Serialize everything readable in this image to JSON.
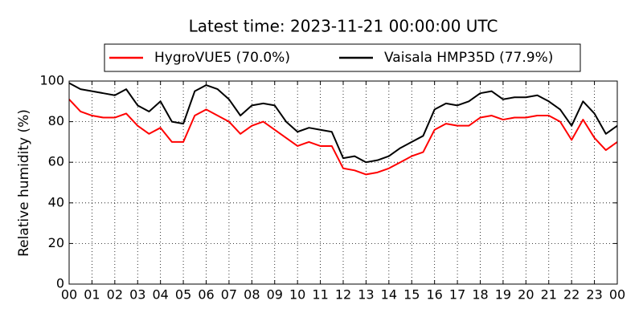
{
  "chart_data": {
    "type": "line",
    "title": "Latest time: 2023-11-21 00:00:00 UTC",
    "y_label": "Relative humidity (%)",
    "x": [
      0,
      0.5,
      1,
      1.5,
      2,
      2.5,
      3,
      3.5,
      4,
      4.5,
      5,
      5.5,
      6,
      6.5,
      7,
      7.5,
      8,
      8.5,
      9,
      9.5,
      10,
      10.5,
      11,
      11.5,
      12,
      12.5,
      13,
      13.5,
      14,
      14.5,
      15,
      15.5,
      16,
      16.5,
      17,
      17.5,
      18,
      18.5,
      19,
      19.5,
      20,
      20.5,
      21,
      21.5,
      22,
      22.5,
      23,
      23.5,
      24
    ],
    "series": [
      {
        "name": "HygroVUE5 (70.0%)",
        "color": "#ff0000",
        "values": [
          91,
          85,
          83,
          82,
          82,
          84,
          78,
          74,
          77,
          70,
          70,
          83,
          86,
          83,
          80,
          74,
          78,
          80,
          76,
          72,
          68,
          70,
          68,
          68,
          57,
          56,
          54,
          55,
          57,
          60,
          63,
          65,
          76,
          79,
          78,
          78,
          82,
          83,
          81,
          82,
          82,
          83,
          83,
          80,
          71,
          81,
          72,
          66,
          70
        ]
      },
      {
        "name": "Vaisala HMP35D (77.9%)",
        "color": "#000000",
        "values": [
          99,
          96,
          95,
          94,
          93,
          96,
          88,
          85,
          90,
          80,
          79,
          95,
          98,
          96,
          91,
          83,
          88,
          89,
          88,
          80,
          75,
          77,
          76,
          75,
          62,
          63,
          60,
          61,
          63,
          67,
          70,
          73,
          86,
          89,
          88,
          90,
          94,
          95,
          91,
          92,
          92,
          93,
          90,
          86,
          78,
          90,
          84,
          74,
          78
        ]
      }
    ],
    "xlim": [
      0,
      24
    ],
    "xticks": [
      {
        "value": 0,
        "label": "00"
      },
      {
        "value": 1,
        "label": "01"
      },
      {
        "value": 2,
        "label": "02"
      },
      {
        "value": 3,
        "label": "03"
      },
      {
        "value": 4,
        "label": "04"
      },
      {
        "value": 5,
        "label": "05"
      },
      {
        "value": 6,
        "label": "06"
      },
      {
        "value": 7,
        "label": "07"
      },
      {
        "value": 8,
        "label": "08"
      },
      {
        "value": 9,
        "label": "09"
      },
      {
        "value": 10,
        "label": "10"
      },
      {
        "value": 11,
        "label": "11"
      },
      {
        "value": 12,
        "label": "12"
      },
      {
        "value": 13,
        "label": "13"
      },
      {
        "value": 14,
        "label": "14"
      },
      {
        "value": 15,
        "label": "15"
      },
      {
        "value": 16,
        "label": "16"
      },
      {
        "value": 17,
        "label": "17"
      },
      {
        "value": 18,
        "label": "18"
      },
      {
        "value": 19,
        "label": "19"
      },
      {
        "value": 20,
        "label": "20"
      },
      {
        "value": 21,
        "label": "21"
      },
      {
        "value": 22,
        "label": "22"
      },
      {
        "value": 23,
        "label": "23"
      },
      {
        "value": 24,
        "label": "00"
      }
    ],
    "ylim": [
      0,
      100
    ],
    "yticks": [
      0,
      20,
      40,
      60,
      80,
      100
    ],
    "grid": true,
    "legend": "top"
  }
}
